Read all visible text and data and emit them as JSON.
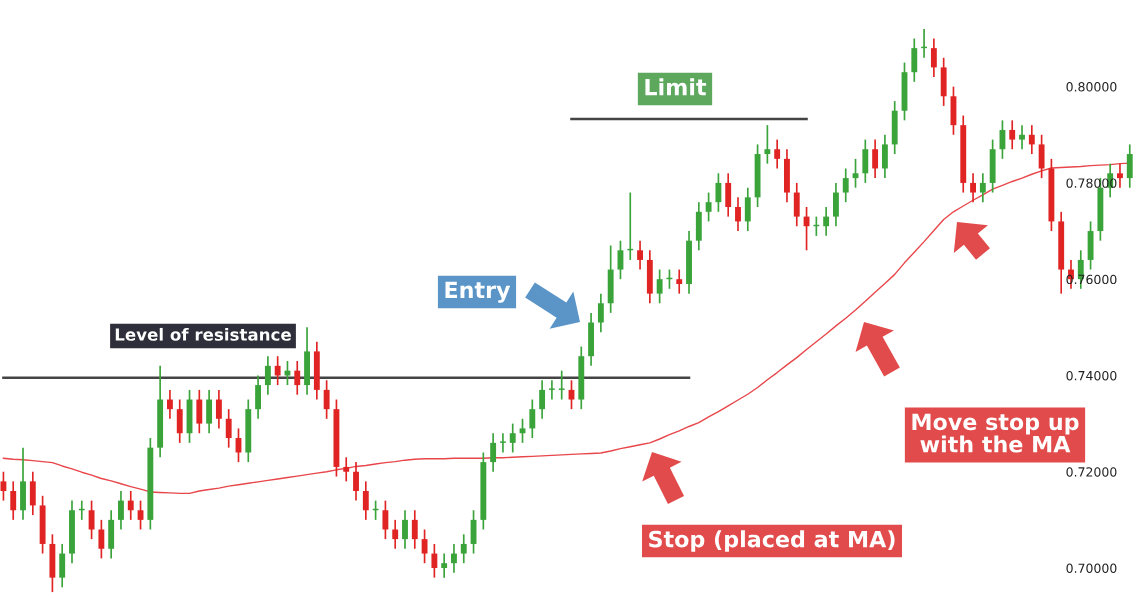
{
  "chart_data": {
    "type": "candlestick",
    "categories": [
      null,
      null,
      null,
      null,
      null,
      null,
      null,
      null,
      null,
      null,
      null,
      null,
      null,
      null,
      null,
      null,
      null,
      null,
      null,
      null,
      null,
      null,
      null,
      null,
      null,
      null,
      null,
      null,
      null,
      null,
      null,
      null,
      null,
      null,
      null,
      null,
      null,
      null,
      null,
      null,
      null,
      null,
      null,
      null,
      null,
      null,
      null,
      null,
      null,
      null,
      null,
      null,
      null,
      null,
      null,
      null,
      null,
      null,
      null,
      null,
      null,
      null,
      null,
      null,
      null,
      null,
      null,
      null,
      null,
      null,
      null,
      null,
      null,
      null,
      null,
      null,
      null,
      null,
      null,
      null,
      null,
      null,
      null,
      null,
      null,
      null,
      null,
      null,
      null,
      null,
      null,
      null,
      null,
      null,
      null,
      null,
      null,
      null,
      null,
      null,
      null,
      null,
      null,
      null,
      null,
      null,
      null,
      null,
      null,
      null,
      null,
      null,
      null,
      null,
      null,
      null
    ],
    "ohlc": [
      [
        0.718,
        0.72,
        0.714,
        0.716
      ],
      [
        0.716,
        0.718,
        0.71,
        0.712
      ],
      [
        0.712,
        0.725,
        0.71,
        0.718
      ],
      [
        0.718,
        0.72,
        0.711,
        0.713
      ],
      [
        0.713,
        0.715,
        0.703,
        0.705
      ],
      [
        0.705,
        0.707,
        0.695,
        0.698
      ],
      [
        0.698,
        0.705,
        0.696,
        0.703
      ],
      [
        0.703,
        0.714,
        0.701,
        0.712
      ],
      [
        0.712,
        0.714,
        0.71,
        0.712
      ],
      [
        0.712,
        0.714,
        0.706,
        0.708
      ],
      [
        0.708,
        0.71,
        0.702,
        0.704
      ],
      [
        0.704,
        0.712,
        0.702,
        0.71
      ],
      [
        0.71,
        0.716,
        0.708,
        0.714
      ],
      [
        0.714,
        0.716,
        0.71,
        0.712
      ],
      [
        0.712,
        0.714,
        0.708,
        0.71
      ],
      [
        0.71,
        0.727,
        0.708,
        0.725
      ],
      [
        0.725,
        0.742,
        0.723,
        0.735
      ],
      [
        0.735,
        0.737,
        0.731,
        0.733
      ],
      [
        0.733,
        0.735,
        0.726,
        0.728
      ],
      [
        0.728,
        0.737,
        0.726,
        0.735
      ],
      [
        0.735,
        0.737,
        0.728,
        0.73
      ],
      [
        0.73,
        0.737,
        0.728,
        0.735
      ],
      [
        0.735,
        0.737,
        0.729,
        0.731
      ],
      [
        0.731,
        0.733,
        0.725,
        0.727
      ],
      [
        0.727,
        0.729,
        0.722,
        0.724
      ],
      [
        0.724,
        0.735,
        0.722,
        0.733
      ],
      [
        0.733,
        0.74,
        0.731,
        0.738
      ],
      [
        0.738,
        0.744,
        0.736,
        0.742
      ],
      [
        0.742,
        0.744,
        0.738,
        0.74
      ],
      [
        0.74,
        0.743,
        0.738,
        0.741
      ],
      [
        0.741,
        0.743,
        0.736,
        0.738
      ],
      [
        0.738,
        0.75,
        0.736,
        0.745
      ],
      [
        0.745,
        0.747,
        0.735,
        0.737
      ],
      [
        0.737,
        0.739,
        0.731,
        0.733
      ],
      [
        0.733,
        0.735,
        0.719,
        0.721
      ],
      [
        0.721,
        0.723,
        0.718,
        0.72
      ],
      [
        0.72,
        0.722,
        0.714,
        0.716
      ],
      [
        0.716,
        0.718,
        0.71,
        0.712
      ],
      [
        0.712,
        0.714,
        0.71,
        0.712
      ],
      [
        0.712,
        0.714,
        0.706,
        0.708
      ],
      [
        0.708,
        0.71,
        0.704,
        0.706
      ],
      [
        0.706,
        0.712,
        0.704,
        0.71
      ],
      [
        0.71,
        0.712,
        0.704,
        0.706
      ],
      [
        0.706,
        0.708,
        0.701,
        0.703
      ],
      [
        0.703,
        0.705,
        0.698,
        0.7
      ],
      [
        0.7,
        0.703,
        0.698,
        0.701
      ],
      [
        0.701,
        0.705,
        0.699,
        0.703
      ],
      [
        0.703,
        0.707,
        0.701,
        0.705
      ],
      [
        0.705,
        0.712,
        0.703,
        0.71
      ],
      [
        0.71,
        0.724,
        0.708,
        0.722
      ],
      [
        0.722,
        0.728,
        0.72,
        0.726
      ],
      [
        0.726,
        0.728,
        0.724,
        0.726
      ],
      [
        0.726,
        0.73,
        0.724,
        0.728
      ],
      [
        0.728,
        0.731,
        0.726,
        0.729
      ],
      [
        0.729,
        0.735,
        0.727,
        0.733
      ],
      [
        0.733,
        0.739,
        0.731,
        0.737
      ],
      [
        0.737,
        0.739,
        0.735,
        0.737
      ],
      [
        0.737,
        0.741,
        0.735,
        0.737
      ],
      [
        0.737,
        0.739,
        0.733,
        0.735
      ],
      [
        0.735,
        0.746,
        0.733,
        0.744
      ],
      [
        0.744,
        0.753,
        0.742,
        0.751
      ],
      [
        0.751,
        0.757,
        0.749,
        0.755
      ],
      [
        0.755,
        0.767,
        0.753,
        0.762
      ],
      [
        0.762,
        0.768,
        0.76,
        0.766
      ],
      [
        0.766,
        0.778,
        0.764,
        0.766
      ],
      [
        0.766,
        0.768,
        0.762,
        0.764
      ],
      [
        0.764,
        0.766,
        0.755,
        0.757
      ],
      [
        0.757,
        0.762,
        0.755,
        0.76
      ],
      [
        0.76,
        0.762,
        0.758,
        0.76
      ],
      [
        0.76,
        0.762,
        0.757,
        0.759
      ],
      [
        0.759,
        0.77,
        0.757,
        0.768
      ],
      [
        0.768,
        0.776,
        0.766,
        0.774
      ],
      [
        0.774,
        0.778,
        0.772,
        0.776
      ],
      [
        0.776,
        0.782,
        0.774,
        0.78
      ],
      [
        0.78,
        0.782,
        0.773,
        0.775
      ],
      [
        0.775,
        0.777,
        0.77,
        0.772
      ],
      [
        0.772,
        0.779,
        0.77,
        0.777
      ],
      [
        0.777,
        0.788,
        0.775,
        0.786
      ],
      [
        0.786,
        0.792,
        0.784,
        0.787
      ],
      [
        0.787,
        0.789,
        0.783,
        0.785
      ],
      [
        0.785,
        0.787,
        0.776,
        0.778
      ],
      [
        0.778,
        0.78,
        0.771,
        0.773
      ],
      [
        0.773,
        0.775,
        0.766,
        0.771
      ],
      [
        0.771,
        0.773,
        0.769,
        0.771
      ],
      [
        0.771,
        0.775,
        0.769,
        0.773
      ],
      [
        0.773,
        0.78,
        0.771,
        0.778
      ],
      [
        0.778,
        0.783,
        0.776,
        0.781
      ],
      [
        0.781,
        0.785,
        0.779,
        0.782
      ],
      [
        0.782,
        0.789,
        0.78,
        0.787
      ],
      [
        0.787,
        0.789,
        0.781,
        0.783
      ],
      [
        0.783,
        0.79,
        0.781,
        0.788
      ],
      [
        0.788,
        0.797,
        0.786,
        0.795
      ],
      [
        0.795,
        0.805,
        0.793,
        0.803
      ],
      [
        0.803,
        0.81,
        0.801,
        0.808
      ],
      [
        0.808,
        0.812,
        0.806,
        0.808
      ],
      [
        0.808,
        0.81,
        0.802,
        0.804
      ],
      [
        0.804,
        0.806,
        0.796,
        0.798
      ],
      [
        0.798,
        0.8,
        0.79,
        0.792
      ],
      [
        0.792,
        0.794,
        0.778,
        0.78
      ],
      [
        0.78,
        0.782,
        0.776,
        0.778
      ],
      [
        0.778,
        0.782,
        0.776,
        0.78
      ],
      [
        0.78,
        0.789,
        0.778,
        0.787
      ],
      [
        0.787,
        0.793,
        0.785,
        0.791
      ],
      [
        0.791,
        0.793,
        0.787,
        0.789
      ],
      [
        0.789,
        0.792,
        0.787,
        0.79
      ],
      [
        0.79,
        0.792,
        0.786,
        0.788
      ],
      [
        0.788,
        0.79,
        0.781,
        0.783
      ],
      [
        0.783,
        0.785,
        0.77,
        0.772
      ],
      [
        0.772,
        0.774,
        0.757,
        0.762
      ],
      [
        0.762,
        0.764,
        0.758,
        0.76
      ],
      [
        0.76,
        0.766,
        0.758,
        0.764
      ],
      [
        0.764,
        0.772,
        0.762,
        0.77
      ],
      [
        0.77,
        0.781,
        0.768,
        0.779
      ],
      [
        0.779,
        0.784,
        0.777,
        0.782
      ],
      [
        0.782,
        0.784,
        0.779,
        0.781
      ],
      [
        0.781,
        0.788,
        0.779,
        0.786
      ]
    ],
    "series": [
      {
        "type": "line",
        "color": "#e8464a",
        "values": [
          0.7228,
          0.7226,
          0.7225,
          0.7223,
          0.7221,
          0.7219,
          0.7212,
          0.7206,
          0.7199,
          0.7193,
          0.7186,
          0.7181,
          0.7175,
          0.7169,
          0.7164,
          0.7158,
          0.7157,
          0.7156,
          0.7155,
          0.7155,
          0.716,
          0.7163,
          0.7166,
          0.717,
          0.7173,
          0.7176,
          0.7179,
          0.7182,
          0.7185,
          0.7188,
          0.7191,
          0.7194,
          0.7197,
          0.72,
          0.7204,
          0.7207,
          0.7211,
          0.7213,
          0.7216,
          0.7219,
          0.7221,
          0.7224,
          0.7226,
          0.7227,
          0.7227,
          0.7227,
          0.7228,
          0.7228,
          0.7228,
          0.7228,
          0.7229,
          0.7229,
          0.723,
          0.7231,
          0.7232,
          0.7233,
          0.7234,
          0.7235,
          0.7236,
          0.7237,
          0.7238,
          0.7239,
          0.7243,
          0.7248,
          0.7252,
          0.7256,
          0.726,
          0.7268,
          0.7277,
          0.7285,
          0.7294,
          0.7302,
          0.7314,
          0.7325,
          0.7337,
          0.7349,
          0.7361,
          0.7375,
          0.7391,
          0.7406,
          0.7422,
          0.7437,
          0.7454,
          0.747,
          0.7486,
          0.7503,
          0.7519,
          0.7536,
          0.7554,
          0.7573,
          0.7591,
          0.761,
          0.7634,
          0.7656,
          0.7678,
          0.7701,
          0.7724,
          0.774,
          0.7752,
          0.7764,
          0.7775,
          0.7787,
          0.7795,
          0.7803,
          0.781,
          0.7818,
          0.7825,
          0.7831,
          0.7832,
          0.7833,
          0.7834,
          0.7836,
          0.7837,
          0.7838,
          0.784,
          0.7841
        ]
      },
      {
        "type": "line",
        "color": "#444444",
        "values": [
          0.7395,
          0.7395,
          0.7395,
          0.7395,
          0.7395,
          0.7395,
          0.7395,
          0.7395,
          0.7395,
          0.7395,
          0.7395,
          0.7395,
          0.7395,
          0.7395,
          0.7395,
          0.7395,
          0.7395,
          0.7395,
          0.7395,
          0.7395,
          0.7395,
          0.7395,
          0.7395,
          0.7395,
          0.7395,
          0.7395,
          0.7395,
          0.7395,
          0.7395,
          0.7395,
          0.7395,
          0.7395,
          0.7395,
          0.7395,
          0.7395,
          0.7395,
          0.7395,
          0.7395,
          0.7395,
          0.7395,
          0.7395,
          0.7395,
          0.7395,
          0.7395,
          0.7395,
          0.7395,
          0.7395,
          0.7395,
          0.7395,
          0.7395,
          0.7395,
          0.7395,
          0.7395,
          0.7395,
          0.7395,
          0.7395,
          0.7395,
          0.7395,
          0.7395,
          0.7395,
          0.7395,
          0.7395,
          0.7395,
          0.7395,
          0.7395,
          0.7395,
          0.7395,
          0.7395,
          0.7395,
          0.7395,
          0.7395,
          null,
          null,
          null,
          null,
          null,
          null,
          null,
          null,
          null,
          null,
          null,
          null,
          null,
          null,
          null,
          null,
          null,
          null,
          null,
          null,
          null,
          null,
          null,
          null,
          null,
          null,
          null,
          null,
          null,
          null,
          null,
          null,
          null,
          null,
          null,
          null,
          null,
          null,
          null,
          null,
          null,
          null,
          null,
          null,
          null
        ]
      },
      {
        "type": "line",
        "color": "#444444",
        "values": [
          null,
          null,
          null,
          null,
          null,
          null,
          null,
          null,
          null,
          null,
          null,
          null,
          null,
          null,
          null,
          null,
          null,
          null,
          null,
          null,
          null,
          null,
          null,
          null,
          null,
          null,
          null,
          null,
          null,
          null,
          null,
          null,
          null,
          null,
          null,
          null,
          null,
          null,
          null,
          null,
          null,
          null,
          null,
          null,
          null,
          null,
          null,
          null,
          null,
          null,
          null,
          null,
          null,
          null,
          null,
          null,
          null,
          null,
          0.7933,
          0.7933,
          0.7933,
          0.7933,
          0.7933,
          0.7933,
          0.7933,
          0.7933,
          0.7933,
          0.7933,
          0.7933,
          0.7933,
          0.7933,
          0.7933,
          0.7933,
          0.7933,
          0.7933,
          0.7933,
          0.7933,
          0.7933,
          0.7933,
          0.7933,
          0.7933,
          0.7933,
          0.7933,
          null,
          null,
          null,
          null,
          null,
          null,
          null,
          null,
          null,
          null,
          null,
          null,
          null,
          null,
          null,
          null,
          null,
          null,
          null,
          null,
          null,
          null,
          null,
          null,
          null,
          null,
          null,
          null,
          null,
          null,
          null,
          null,
          null
        ]
      }
    ],
    "ylim": [
      0.6919,
      0.818
    ],
    "yticks": [
      {
        "value": 0.7,
        "label": "0.70000"
      },
      {
        "value": 0.72,
        "label": "0.72000"
      },
      {
        "value": 0.74,
        "label": "0.74000"
      },
      {
        "value": 0.76,
        "label": "0.76000"
      },
      {
        "value": 0.78,
        "label": "0.78000"
      },
      {
        "value": 0.8,
        "label": "0.80000"
      }
    ],
    "tick_labels": "y",
    "grid": false,
    "annotations": [
      "Limit",
      "Entry",
      "Level of resistance",
      "Move stop up\nwith the MA",
      "Stop (placed at MA)"
    ]
  }
}
